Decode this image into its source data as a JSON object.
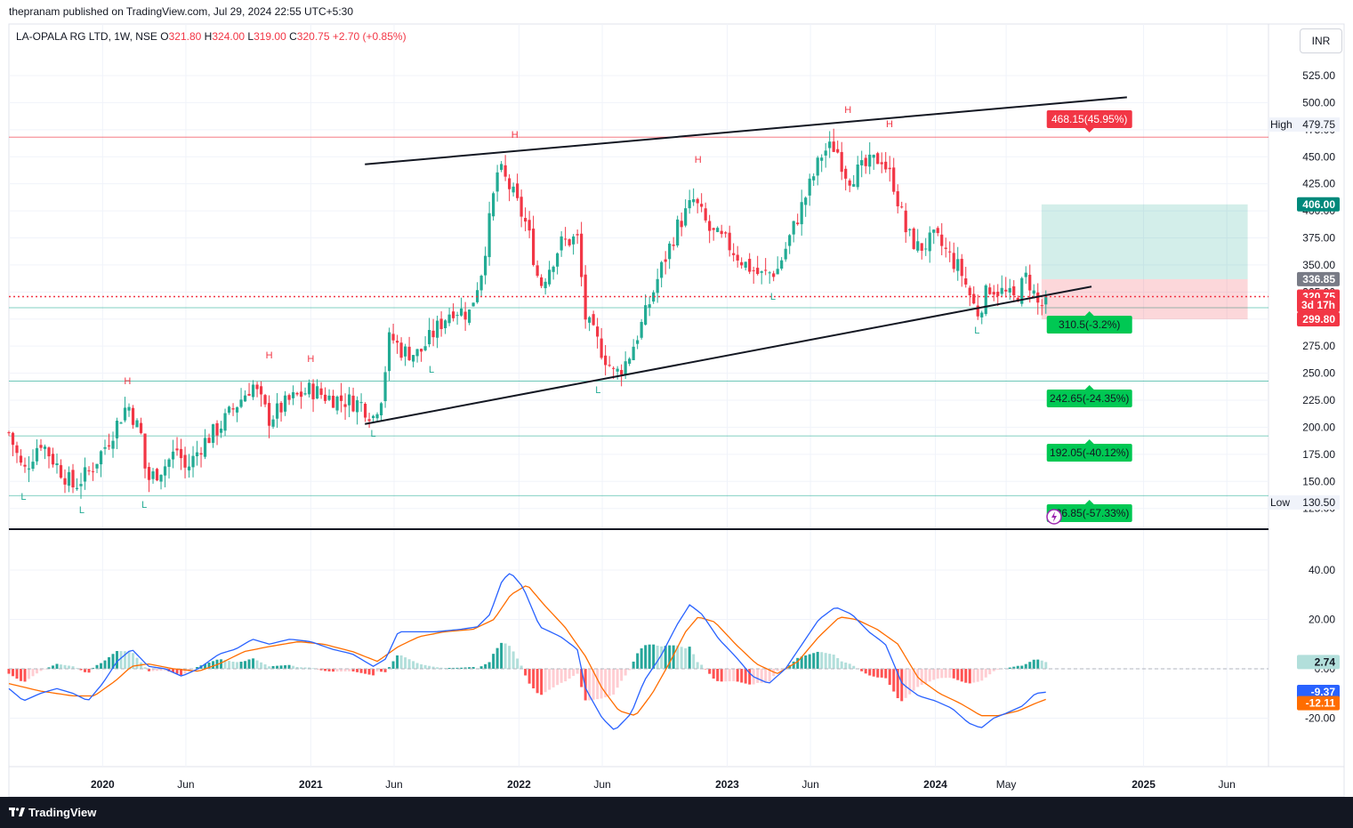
{
  "header": {
    "publisher": "thepranam published on TradingView.com, Jul 29, 2024 22:55 UTC+5:30"
  },
  "legend": {
    "symbol": "LA-OPALA RG LTD, 1W, NSE",
    "o_label": "O",
    "o": "321.80",
    "h_label": "H",
    "h": "324.00",
    "l_label": "L",
    "l": "319.00",
    "c_label": "C",
    "c": "320.75",
    "change": "+2.70 (+0.85%)"
  },
  "currency_button": "INR",
  "footer": {
    "brand": "TradingView"
  },
  "colors": {
    "up": "#22ab94",
    "down": "#f23645",
    "macd": "#2962ff",
    "signal": "#ff6d00",
    "trendline": "#131722",
    "target_label": "#00c853",
    "stop_label": "#f23645"
  },
  "chart_data": [
    {
      "type": "candlestick",
      "timeframe": "1W",
      "y_axis": {
        "ticks": [
          "525.00",
          "500.00",
          "475.00",
          "450.00",
          "425.00",
          "400.00",
          "375.00",
          "350.00",
          "325.00",
          "300.00",
          "275.00",
          "250.00",
          "225.00",
          "200.00",
          "175.00",
          "150.00",
          "125.00"
        ],
        "range": [
          115,
          545
        ]
      },
      "x_axis": {
        "ticks": [
          {
            "label": "2020",
            "t": 2020.0
          },
          {
            "label": "Jun",
            "t": 2020.4
          },
          {
            "label": "2021",
            "t": 2021.0
          },
          {
            "label": "Jun",
            "t": 2021.4
          },
          {
            "label": "2022",
            "t": 2022.0
          },
          {
            "label": "Jun",
            "t": 2022.4
          },
          {
            "label": "2023",
            "t": 2023.0
          },
          {
            "label": "Jun",
            "t": 2023.4
          },
          {
            "label": "2024",
            "t": 2024.0
          },
          {
            "label": "May",
            "t": 2024.34
          },
          {
            "label": "2025",
            "t": 2025.0
          },
          {
            "label": "Jun",
            "t": 2025.4
          }
        ],
        "range": [
          2019.55,
          2025.6
        ]
      },
      "price_key_points": [
        {
          "t": 2019.55,
          "p": 195
        },
        {
          "t": 2019.62,
          "p": 158
        },
        {
          "t": 2019.7,
          "p": 188
        },
        {
          "t": 2019.78,
          "p": 165
        },
        {
          "t": 2019.86,
          "p": 145
        },
        {
          "t": 2019.94,
          "p": 160
        },
        {
          "t": 2020.02,
          "p": 185
        },
        {
          "t": 2020.12,
          "p": 222
        },
        {
          "t": 2020.19,
          "p": 190
        },
        {
          "t": 2020.21,
          "p": 150
        },
        {
          "t": 2020.3,
          "p": 165
        },
        {
          "t": 2020.36,
          "p": 180
        },
        {
          "t": 2020.4,
          "p": 160
        },
        {
          "t": 2020.48,
          "p": 185
        },
        {
          "t": 2020.56,
          "p": 200
        },
        {
          "t": 2020.64,
          "p": 220
        },
        {
          "t": 2020.72,
          "p": 240
        },
        {
          "t": 2020.8,
          "p": 208
        },
        {
          "t": 2020.9,
          "p": 225
        },
        {
          "t": 2021.0,
          "p": 235
        },
        {
          "t": 2021.08,
          "p": 228
        },
        {
          "t": 2021.16,
          "p": 225
        },
        {
          "t": 2021.24,
          "p": 222
        },
        {
          "t": 2021.3,
          "p": 210
        },
        {
          "t": 2021.34,
          "p": 230
        },
        {
          "t": 2021.38,
          "p": 285
        },
        {
          "t": 2021.44,
          "p": 270
        },
        {
          "t": 2021.52,
          "p": 268
        },
        {
          "t": 2021.6,
          "p": 290
        },
        {
          "t": 2021.68,
          "p": 310
        },
        {
          "t": 2021.76,
          "p": 305
        },
        {
          "t": 2021.82,
          "p": 345
        },
        {
          "t": 2021.9,
          "p": 440
        },
        {
          "t": 2021.96,
          "p": 420
        },
        {
          "t": 2022.04,
          "p": 385
        },
        {
          "t": 2022.1,
          "p": 330
        },
        {
          "t": 2022.2,
          "p": 370
        },
        {
          "t": 2022.28,
          "p": 375
        },
        {
          "t": 2022.32,
          "p": 300
        },
        {
          "t": 2022.4,
          "p": 270
        },
        {
          "t": 2022.46,
          "p": 248
        },
        {
          "t": 2022.52,
          "p": 262
        },
        {
          "t": 2022.6,
          "p": 300
        },
        {
          "t": 2022.68,
          "p": 345
        },
        {
          "t": 2022.76,
          "p": 385
        },
        {
          "t": 2022.84,
          "p": 410
        },
        {
          "t": 2022.92,
          "p": 380
        },
        {
          "t": 2023.0,
          "p": 370
        },
        {
          "t": 2023.08,
          "p": 352
        },
        {
          "t": 2023.16,
          "p": 340
        },
        {
          "t": 2023.24,
          "p": 345
        },
        {
          "t": 2023.32,
          "p": 385
        },
        {
          "t": 2023.4,
          "p": 425
        },
        {
          "t": 2023.46,
          "p": 455
        },
        {
          "t": 2023.52,
          "p": 460
        },
        {
          "t": 2023.58,
          "p": 430
        },
        {
          "t": 2023.66,
          "p": 440
        },
        {
          "t": 2023.74,
          "p": 450
        },
        {
          "t": 2023.8,
          "p": 425
        },
        {
          "t": 2023.86,
          "p": 380
        },
        {
          "t": 2023.92,
          "p": 365
        },
        {
          "t": 2024.0,
          "p": 375
        },
        {
          "t": 2024.06,
          "p": 360
        },
        {
          "t": 2024.12,
          "p": 345
        },
        {
          "t": 2024.2,
          "p": 305
        },
        {
          "t": 2024.26,
          "p": 330
        },
        {
          "t": 2024.32,
          "p": 325
        },
        {
          "t": 2024.38,
          "p": 318
        },
        {
          "t": 2024.44,
          "p": 340
        },
        {
          "t": 2024.5,
          "p": 310
        },
        {
          "t": 2024.54,
          "p": 320.75
        }
      ],
      "pivot_labels": [
        {
          "text": "H",
          "t": 2020.12,
          "p": 490,
          "kind": "high",
          "py": 432
        },
        {
          "text": "H",
          "t": 2020.8,
          "p": 490,
          "kind": "high",
          "py": 403
        },
        {
          "text": "H",
          "t": 2021.0,
          "p": 490,
          "kind": "high",
          "py": 407
        },
        {
          "text": "H",
          "t": 2021.98,
          "p": 490,
          "kind": "high",
          "py": 155
        },
        {
          "text": "H",
          "t": 2022.86,
          "p": 490,
          "kind": "high",
          "py": 183
        },
        {
          "text": "H",
          "t": 2023.58,
          "p": 490,
          "kind": "high",
          "py": 127
        },
        {
          "text": "H",
          "t": 2023.78,
          "p": 490,
          "kind": "high",
          "py": 143
        },
        {
          "text": "L",
          "t": 2019.62,
          "p": 0,
          "kind": "low",
          "py": 562
        },
        {
          "text": "L",
          "t": 2019.9,
          "p": 0,
          "kind": "low",
          "py": 577
        },
        {
          "text": "L",
          "t": 2020.2,
          "p": 0,
          "kind": "low",
          "py": 571
        },
        {
          "text": "L",
          "t": 2021.3,
          "p": 0,
          "kind": "low",
          "py": 491
        },
        {
          "text": "L",
          "t": 2021.58,
          "p": 0,
          "kind": "low",
          "py": 419
        },
        {
          "text": "L",
          "t": 2022.38,
          "p": 0,
          "kind": "low",
          "py": 442
        },
        {
          "text": "L",
          "t": 2023.22,
          "p": 0,
          "kind": "low",
          "py": 337
        },
        {
          "text": "L",
          "t": 2024.2,
          "p": 0,
          "kind": "low",
          "py": 375
        }
      ],
      "trendlines": [
        {
          "name": "upper-channel-line",
          "t1": 2021.26,
          "p1": 443,
          "t2": 2024.92,
          "p2": 505
        },
        {
          "name": "lower-channel-line",
          "t1": 2021.26,
          "p1": 203,
          "t2": 2024.75,
          "p2": 330
        }
      ],
      "horizontal_levels": [
        {
          "price": 468.15,
          "color": "#f23645",
          "label": "468.15(45.95%)"
        },
        {
          "price": 310.5,
          "color": "#22ab94",
          "label": "310.5(-3.2%)"
        },
        {
          "price": 242.65,
          "color": "#22ab94",
          "label": "242.65(-24.35%)"
        },
        {
          "price": 192.05,
          "color": "#22ab94",
          "label": "192.05(-40.12%)"
        },
        {
          "price": 136.85,
          "color": "#22ab94",
          "label": "136.85(-57.33%)"
        }
      ],
      "position_tool": {
        "t_start": 2024.51,
        "t_end": 2025.5,
        "target": 406.0,
        "entry": 336.85,
        "stop": 299.8
      },
      "axis_labels": [
        {
          "text": "406.00",
          "price": 406.0,
          "bg": "#00897b"
        },
        {
          "text": "336.85",
          "price": 336.85,
          "bg": "#787b86"
        },
        {
          "text": "320.75",
          "price": 320.75,
          "bg": "#f23645"
        },
        {
          "text": "3d 17h",
          "price": 313,
          "bg": "#f23645"
        },
        {
          "text": "299.80",
          "price": 299.8,
          "bg": "#f23645"
        }
      ],
      "high_marker": {
        "label": "High",
        "value": "479.75",
        "price": 479.75
      },
      "low_marker": {
        "label": "Low",
        "value": "130.50",
        "price": 130.5
      },
      "last_price": 320.75
    },
    {
      "type": "line",
      "name": "MACD",
      "y_axis": {
        "ticks": [
          "40.00",
          "20.00",
          "0.00",
          "-20.00"
        ],
        "range": [
          -30,
          47
        ]
      },
      "macd_key_points": [
        {
          "t": 2019.55,
          "v": -8
        },
        {
          "t": 2019.62,
          "v": -13
        },
        {
          "t": 2019.7,
          "v": -10
        },
        {
          "t": 2019.78,
          "v": -8
        },
        {
          "t": 2019.86,
          "v": -10
        },
        {
          "t": 2019.93,
          "v": -13
        },
        {
          "t": 2020.0,
          "v": -6
        },
        {
          "t": 2020.07,
          "v": 3
        },
        {
          "t": 2020.14,
          "v": 8
        },
        {
          "t": 2020.22,
          "v": 1
        },
        {
          "t": 2020.3,
          "v": 0
        },
        {
          "t": 2020.38,
          "v": -3
        },
        {
          "t": 2020.46,
          "v": 0
        },
        {
          "t": 2020.56,
          "v": 6
        },
        {
          "t": 2020.64,
          "v": 8
        },
        {
          "t": 2020.72,
          "v": 12
        },
        {
          "t": 2020.8,
          "v": 10
        },
        {
          "t": 2020.9,
          "v": 12
        },
        {
          "t": 2021.0,
          "v": 11
        },
        {
          "t": 2021.1,
          "v": 8
        },
        {
          "t": 2021.2,
          "v": 6
        },
        {
          "t": 2021.3,
          "v": 1
        },
        {
          "t": 2021.36,
          "v": 4
        },
        {
          "t": 2021.42,
          "v": 15
        },
        {
          "t": 2021.5,
          "v": 15
        },
        {
          "t": 2021.6,
          "v": 15
        },
        {
          "t": 2021.72,
          "v": 16
        },
        {
          "t": 2021.8,
          "v": 17
        },
        {
          "t": 2021.86,
          "v": 22
        },
        {
          "t": 2021.92,
          "v": 36
        },
        {
          "t": 2021.96,
          "v": 39
        },
        {
          "t": 2022.02,
          "v": 33
        },
        {
          "t": 2022.1,
          "v": 17
        },
        {
          "t": 2022.2,
          "v": 13
        },
        {
          "t": 2022.28,
          "v": 8
        },
        {
          "t": 2022.32,
          "v": -8
        },
        {
          "t": 2022.4,
          "v": -20
        },
        {
          "t": 2022.46,
          "v": -25
        },
        {
          "t": 2022.54,
          "v": -18
        },
        {
          "t": 2022.6,
          "v": -5
        },
        {
          "t": 2022.68,
          "v": 5
        },
        {
          "t": 2022.76,
          "v": 18
        },
        {
          "t": 2022.82,
          "v": 26
        },
        {
          "t": 2022.88,
          "v": 22
        },
        {
          "t": 2022.96,
          "v": 12
        },
        {
          "t": 2023.04,
          "v": 5
        },
        {
          "t": 2023.12,
          "v": -3
        },
        {
          "t": 2023.2,
          "v": -6
        },
        {
          "t": 2023.28,
          "v": 0
        },
        {
          "t": 2023.36,
          "v": 10
        },
        {
          "t": 2023.44,
          "v": 20
        },
        {
          "t": 2023.52,
          "v": 25
        },
        {
          "t": 2023.6,
          "v": 22
        },
        {
          "t": 2023.68,
          "v": 15
        },
        {
          "t": 2023.76,
          "v": 10
        },
        {
          "t": 2023.84,
          "v": -6
        },
        {
          "t": 2023.92,
          "v": -11
        },
        {
          "t": 2024.0,
          "v": -13
        },
        {
          "t": 2024.08,
          "v": -16
        },
        {
          "t": 2024.16,
          "v": -22
        },
        {
          "t": 2024.22,
          "v": -24
        },
        {
          "t": 2024.28,
          "v": -20
        },
        {
          "t": 2024.34,
          "v": -18
        },
        {
          "t": 2024.42,
          "v": -15
        },
        {
          "t": 2024.48,
          "v": -10
        },
        {
          "t": 2024.54,
          "v": -9.37
        }
      ],
      "signal_key_points": [
        {
          "t": 2019.55,
          "v": -6
        },
        {
          "t": 2019.7,
          "v": -9
        },
        {
          "t": 2019.86,
          "v": -11
        },
        {
          "t": 2019.96,
          "v": -11
        },
        {
          "t": 2020.06,
          "v": -5
        },
        {
          "t": 2020.14,
          "v": 1
        },
        {
          "t": 2020.22,
          "v": 2
        },
        {
          "t": 2020.34,
          "v": 0
        },
        {
          "t": 2020.46,
          "v": -1
        },
        {
          "t": 2020.56,
          "v": 2
        },
        {
          "t": 2020.68,
          "v": 7
        },
        {
          "t": 2020.8,
          "v": 9
        },
        {
          "t": 2020.94,
          "v": 11
        },
        {
          "t": 2021.06,
          "v": 10
        },
        {
          "t": 2021.2,
          "v": 7
        },
        {
          "t": 2021.32,
          "v": 3
        },
        {
          "t": 2021.42,
          "v": 9
        },
        {
          "t": 2021.52,
          "v": 13
        },
        {
          "t": 2021.64,
          "v": 15
        },
        {
          "t": 2021.78,
          "v": 16
        },
        {
          "t": 2021.88,
          "v": 20
        },
        {
          "t": 2021.96,
          "v": 30
        },
        {
          "t": 2022.04,
          "v": 34
        },
        {
          "t": 2022.12,
          "v": 26
        },
        {
          "t": 2022.22,
          "v": 17
        },
        {
          "t": 2022.32,
          "v": 5
        },
        {
          "t": 2022.4,
          "v": -8
        },
        {
          "t": 2022.48,
          "v": -17
        },
        {
          "t": 2022.56,
          "v": -19
        },
        {
          "t": 2022.64,
          "v": -10
        },
        {
          "t": 2022.72,
          "v": 2
        },
        {
          "t": 2022.8,
          "v": 15
        },
        {
          "t": 2022.86,
          "v": 21
        },
        {
          "t": 2022.94,
          "v": 19
        },
        {
          "t": 2023.04,
          "v": 10
        },
        {
          "t": 2023.14,
          "v": 2
        },
        {
          "t": 2023.24,
          "v": -2
        },
        {
          "t": 2023.34,
          "v": 3
        },
        {
          "t": 2023.44,
          "v": 13
        },
        {
          "t": 2023.54,
          "v": 21
        },
        {
          "t": 2023.62,
          "v": 20
        },
        {
          "t": 2023.72,
          "v": 16
        },
        {
          "t": 2023.82,
          "v": 10
        },
        {
          "t": 2023.92,
          "v": -4
        },
        {
          "t": 2024.02,
          "v": -10
        },
        {
          "t": 2024.12,
          "v": -14
        },
        {
          "t": 2024.22,
          "v": -19
        },
        {
          "t": 2024.3,
          "v": -19
        },
        {
          "t": 2024.4,
          "v": -17
        },
        {
          "t": 2024.48,
          "v": -14
        },
        {
          "t": 2024.54,
          "v": -12.11
        }
      ],
      "value_labels": [
        {
          "text": "2.74",
          "value": 2.74,
          "bg": "#b2dfdb",
          "fg": "#131722"
        },
        {
          "text": "-9.37",
          "value": -9.37,
          "bg": "#2962ff",
          "fg": "#ffffff",
          "dy": 0
        },
        {
          "text": "-12.11",
          "value": -12.11,
          "bg": "#ff6d00",
          "fg": "#ffffff",
          "dy": 5
        }
      ],
      "last_histogram": 2.74
    }
  ]
}
